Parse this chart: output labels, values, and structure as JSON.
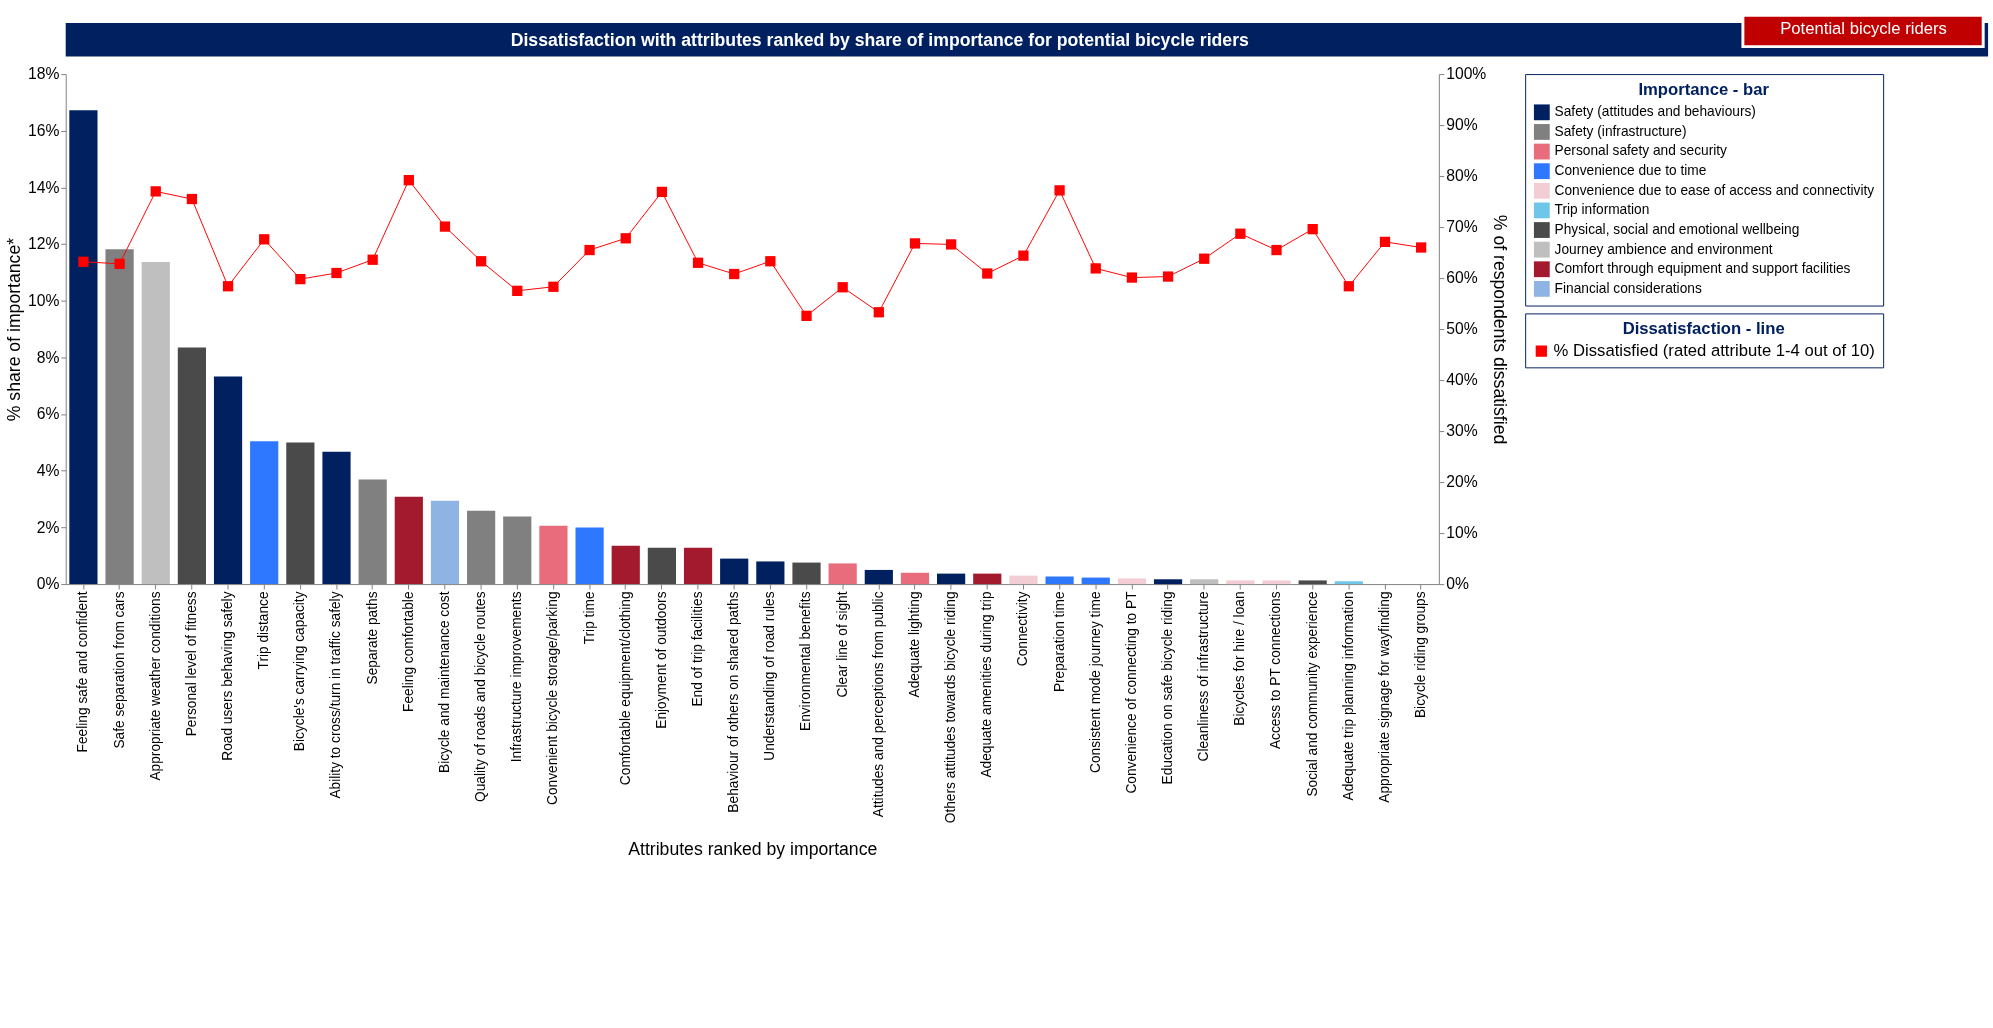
{
  "chart_data": {
    "type": "bar",
    "title": "Dissatisfaction with attributes ranked by share of importance for potential bicycle riders",
    "annotations": [
      "Potential bicycle riders"
    ],
    "xlabel": "Attributes ranked by importance",
    "ylabel": "% share of importance*",
    "y2label": "% of respondents dissatisfied",
    "legend_title": [
      "Dissatisfaction - line",
      "Importance - bar"
    ],
    "categories": [
      "Feeling safe and confident",
      "Safe separation from cars",
      "Appropriate weather conditions",
      "Personal level of fitness",
      "Road users behaving safely",
      "Trip distance",
      "Bicycle's carrying capacity",
      "Ability to cross/turn in traffic safely",
      "Separate paths",
      "Feeling comfortable",
      "Bicycle and maintenance cost",
      "Quality of roads and bicycle routes",
      "Infrastructure improvements",
      "Convenient bicycle storage/parking",
      "Trip time",
      "Comfortable equipment/clothing",
      "Enjoyment of outdoors",
      "End of trip facilities",
      "Behaviour of others on shared paths",
      "Understanding of road rules",
      "Environmental benefits",
      "Clear line of sight",
      "Attitudes and perceptions from public",
      "Adequate lighting",
      "Others attitudes towards bicycle riding",
      "Adequate amenities during trip",
      "Connectivity",
      "Preparation time",
      "Consistent mode journey time",
      "Convenience of connecting to PT",
      "Education on safe bicycle riding",
      "Cleanliness of infrastructure",
      "Bicycles for hire / loan",
      "Access to PT connections",
      "Social and community experience",
      "Adequate trip planning information",
      "Appropriate signage for wayfinding",
      "Bicycle riding groups"
    ],
    "stacked": true,
    "series": [
      {
        "name": "Safety (attitudes and behaviours)",
        "color": "#002060",
        "values": [
          16.72,
          null,
          null,
          null,
          7.33,
          null,
          null,
          4.67,
          null,
          null,
          null,
          null,
          null,
          null,
          null,
          null,
          null,
          null,
          0.9,
          0.8,
          null,
          null,
          0.5,
          null,
          0.37,
          null,
          null,
          null,
          null,
          null,
          0.17,
          null,
          null,
          null,
          null,
          null,
          null,
          null
        ]
      },
      {
        "name": "Safety (infrastructure)",
        "color": "#808080",
        "values": [
          null,
          11.82,
          null,
          null,
          null,
          null,
          null,
          null,
          3.69,
          null,
          null,
          2.59,
          2.39,
          null,
          null,
          null,
          null,
          null,
          null,
          null,
          null,
          null,
          null,
          null,
          null,
          null,
          null,
          null,
          null,
          null,
          null,
          null,
          null,
          null,
          null,
          null,
          null,
          null
        ]
      },
      {
        "name": "Personal safety and security",
        "color": "#e86c7c",
        "values": [
          null,
          null,
          null,
          null,
          null,
          null,
          null,
          null,
          null,
          null,
          null,
          null,
          null,
          2.06,
          null,
          null,
          null,
          null,
          null,
          null,
          null,
          0.73,
          null,
          0.4,
          null,
          null,
          null,
          null,
          null,
          null,
          null,
          null,
          null,
          null,
          null,
          null,
          null,
          null
        ]
      },
      {
        "name": "Convenience due to time",
        "color": "#2e78ff",
        "values": [
          null,
          null,
          null,
          null,
          null,
          5.04,
          null,
          null,
          null,
          null,
          null,
          null,
          null,
          null,
          2.0,
          null,
          null,
          null,
          null,
          null,
          null,
          null,
          null,
          null,
          null,
          null,
          null,
          0.27,
          0.23,
          null,
          null,
          null,
          null,
          null,
          null,
          null,
          null,
          null
        ]
      },
      {
        "name": "Convenience due to ease of access and connectivity",
        "color": "#f2cdd3",
        "values": [
          null,
          null,
          null,
          null,
          null,
          null,
          null,
          null,
          null,
          null,
          null,
          null,
          null,
          null,
          null,
          null,
          null,
          null,
          null,
          null,
          null,
          null,
          null,
          null,
          null,
          null,
          0.3,
          null,
          null,
          0.2,
          null,
          null,
          0.13,
          0.13,
          null,
          null,
          null,
          null
        ]
      },
      {
        "name": "Trip information",
        "color": "#6ec6ea",
        "values": [
          null,
          null,
          null,
          null,
          null,
          null,
          null,
          null,
          null,
          null,
          null,
          null,
          null,
          null,
          null,
          null,
          null,
          null,
          null,
          null,
          null,
          null,
          null,
          null,
          null,
          null,
          null,
          null,
          null,
          null,
          null,
          null,
          null,
          null,
          null,
          0.1,
          null,
          null
        ]
      },
      {
        "name": "Physical, social and emotional wellbeing",
        "color": "#4a4a4a",
        "values": [
          null,
          null,
          null,
          8.35,
          null,
          null,
          5.0,
          null,
          null,
          null,
          null,
          null,
          null,
          null,
          null,
          null,
          1.28,
          null,
          null,
          null,
          0.76,
          null,
          null,
          null,
          null,
          null,
          null,
          null,
          null,
          null,
          null,
          null,
          null,
          null,
          0.13,
          null,
          null,
          null
        ]
      },
      {
        "name": "Journey ambience and environment",
        "color": "#bfbfbf",
        "values": [
          null,
          null,
          11.37,
          null,
          null,
          null,
          null,
          null,
          null,
          null,
          null,
          null,
          null,
          null,
          null,
          null,
          null,
          null,
          null,
          null,
          null,
          null,
          null,
          null,
          null,
          null,
          null,
          null,
          null,
          null,
          null,
          0.17,
          null,
          null,
          null,
          null,
          null,
          null
        ]
      },
      {
        "name": "Comfort through equipment and support facilities",
        "color": "#a31a2e",
        "values": [
          null,
          null,
          null,
          null,
          null,
          null,
          null,
          null,
          null,
          3.08,
          null,
          null,
          null,
          null,
          null,
          1.35,
          null,
          1.28,
          null,
          null,
          null,
          null,
          null,
          null,
          null,
          0.37,
          null,
          null,
          null,
          null,
          null,
          null,
          null,
          null,
          null,
          null,
          null,
          null
        ]
      },
      {
        "name": "Financial considerations",
        "color": "#8eb4e3",
        "values": [
          null,
          null,
          null,
          null,
          null,
          null,
          null,
          null,
          null,
          null,
          2.94,
          null,
          null,
          null,
          null,
          null,
          null,
          null,
          null,
          null,
          null,
          null,
          null,
          null,
          null,
          null,
          null,
          null,
          null,
          null,
          null,
          null,
          null,
          null,
          null,
          null,
          null,
          null
        ]
      },
      {
        "name": "% Dissatisfied (rated attribute 1-4 out of 10)",
        "type": "line",
        "axis": "y2",
        "color": "#ff0000",
        "values": [
          63.2,
          62.8,
          77.0,
          75.5,
          58.4,
          67.6,
          59.8,
          61.0,
          63.6,
          79.2,
          70.1,
          63.3,
          57.5,
          58.3,
          65.5,
          67.8,
          76.9,
          63.0,
          60.8,
          63.3,
          52.6,
          58.2,
          53.3,
          66.8,
          66.6,
          60.9,
          64.4,
          77.2,
          61.9,
          60.1,
          60.3,
          63.8,
          68.7,
          65.5,
          69.6,
          58.4,
          67.1,
          66.0
        ]
      }
    ],
    "ylim": [
      0,
      18
    ],
    "yticks": [
      {
        "value": 0,
        "label": "0%"
      },
      {
        "value": 2,
        "label": "2%"
      },
      {
        "value": 4,
        "label": "4%"
      },
      {
        "value": 6,
        "label": "6%"
      },
      {
        "value": 8,
        "label": "8%"
      },
      {
        "value": 10,
        "label": "10%"
      },
      {
        "value": 12,
        "label": "12%"
      },
      {
        "value": 14,
        "label": "14%"
      },
      {
        "value": 16,
        "label": "16%"
      },
      {
        "value": 18,
        "label": "18%"
      }
    ],
    "y2lim": [
      0,
      100
    ],
    "y2ticks": [
      {
        "value": 0,
        "label": "0%"
      },
      {
        "value": 10,
        "label": "10%"
      },
      {
        "value": 20,
        "label": "20%"
      },
      {
        "value": 30,
        "label": "30%"
      },
      {
        "value": 40,
        "label": "40%"
      },
      {
        "value": 50,
        "label": "50%"
      },
      {
        "value": 60,
        "label": "60%"
      },
      {
        "value": 70,
        "label": "70%"
      },
      {
        "value": 80,
        "label": "80%"
      },
      {
        "value": 90,
        "label": "90%"
      },
      {
        "value": 100,
        "label": "100%"
      }
    ],
    "grid": false,
    "legend": "right",
    "marker": "square",
    "line_style": "solid"
  }
}
